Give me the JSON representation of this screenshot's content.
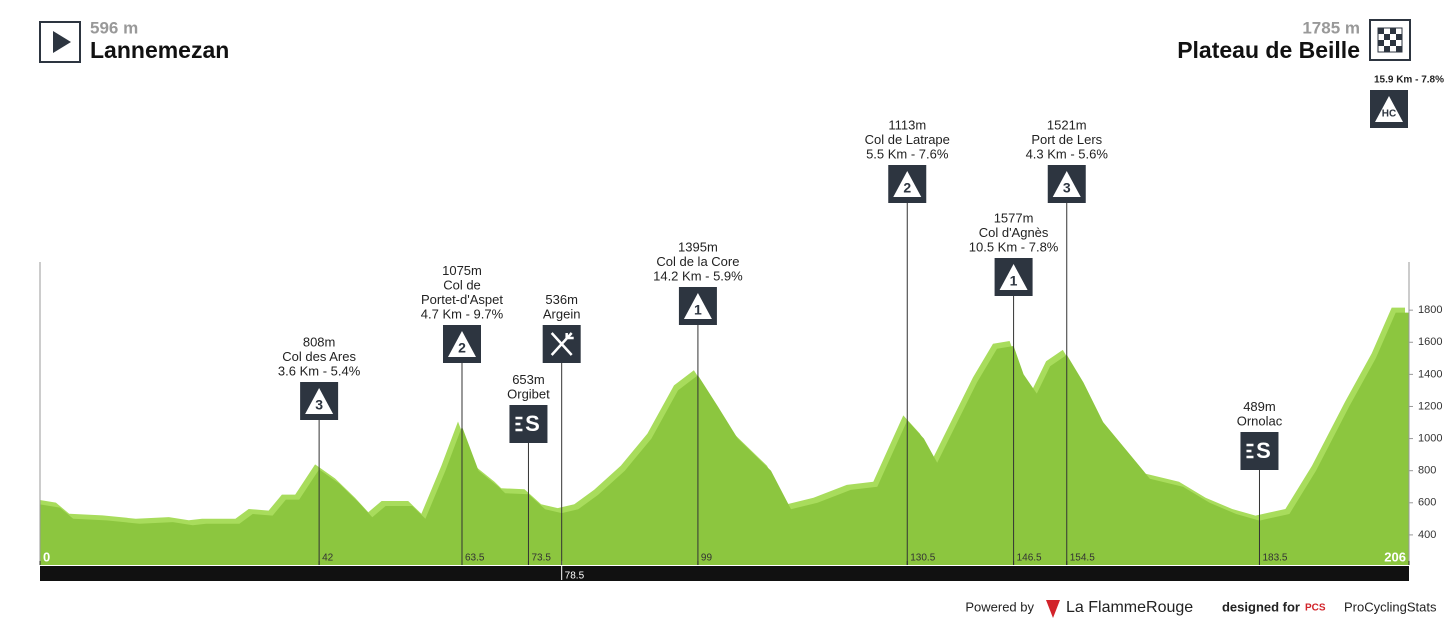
{
  "header": {
    "start_altitude": "596 m",
    "start_name": "Lannemezan",
    "finish_altitude": "1785 m",
    "finish_name": "Plateau de Beille"
  },
  "chart_data": {
    "type": "area",
    "x": [
      0,
      3,
      5,
      10,
      15,
      20,
      23,
      25,
      30,
      32,
      35,
      37,
      39,
      42,
      45,
      48,
      50,
      52,
      56,
      58,
      61,
      63.5,
      66,
      69,
      70,
      73.5,
      76,
      78.5,
      81,
      84,
      88,
      92,
      96,
      99,
      102,
      105,
      110,
      113,
      117,
      122,
      126,
      130.5,
      133,
      135,
      138,
      141,
      144,
      146.5,
      148,
      150,
      152,
      154.5,
      157,
      160,
      164,
      167,
      172,
      176,
      180,
      183.5,
      188,
      192,
      197,
      201,
      204,
      206
    ],
    "values": [
      590,
      570,
      500,
      490,
      470,
      480,
      460,
      470,
      470,
      530,
      520,
      620,
      620,
      808,
      720,
      600,
      510,
      580,
      580,
      500,
      800,
      1075,
      800,
      700,
      660,
      653,
      560,
      536,
      560,
      650,
      800,
      1000,
      1300,
      1395,
      1200,
      1000,
      800,
      560,
      600,
      680,
      700,
      1113,
      1000,
      850,
      1100,
      1350,
      1560,
      1577,
      1400,
      1280,
      1450,
      1521,
      1350,
      1100,
      900,
      750,
      700,
      600,
      530,
      489,
      530,
      800,
      1200,
      1500,
      1785,
      1785
    ],
    "color": "#8cc63f",
    "highlight_color": "#a8dc5c",
    "xlim": [
      0,
      206
    ],
    "ylim": [
      200,
      2100
    ],
    "xticks": [
      0,
      42,
      63.5,
      73.5,
      78.5,
      99,
      130.5,
      146.5,
      154.5,
      183.5,
      206
    ],
    "yticks": [
      400,
      600,
      800,
      1000,
      1200,
      1400,
      1600,
      1800
    ],
    "waypoints": [
      {
        "x": 42,
        "lines": [
          "808m",
          "Col des Ares",
          "3.6 Km - 5.4%"
        ],
        "icon": "3"
      },
      {
        "x": 63.5,
        "lines": [
          "1075m",
          "Col de",
          "Portet-d'Aspet",
          "4.7 Km - 9.7%"
        ],
        "icon": "2"
      },
      {
        "x": 73.5,
        "lines": [
          "653m",
          "Orgibet"
        ],
        "icon": "S"
      },
      {
        "x": 78.5,
        "lines": [
          "536m",
          "Argein"
        ],
        "kind": "feed"
      },
      {
        "x": 99,
        "lines": [
          "1395m",
          "Col de la Core",
          "14.2 Km - 5.9%"
        ],
        "icon": "1"
      },
      {
        "x": 130.5,
        "lines": [
          "1113m",
          "Col de Latrape",
          "5.5 Km - 7.6%"
        ],
        "icon": "2"
      },
      {
        "x": 146.5,
        "lines": [
          "1577m",
          "Col d'Agnès",
          "10.5 Km - 7.8%"
        ],
        "icon": "1"
      },
      {
        "x": 154.5,
        "lines": [
          "1521m",
          "Port de Lers",
          "4.3 Km - 5.6%"
        ],
        "icon": "3"
      },
      {
        "x": 183.5,
        "lines": [
          "489m",
          "Ornolac"
        ],
        "icon": "S"
      },
      {
        "x": 206,
        "lines": [
          "15.9 Km - 7.8%"
        ],
        "icon": "HC"
      }
    ]
  },
  "footer": {
    "powered": "Powered by",
    "brand": "La FlammeRouge",
    "designed": "designed for",
    "pcs": "PCS",
    "pcs_name": "ProCyclingStats"
  }
}
